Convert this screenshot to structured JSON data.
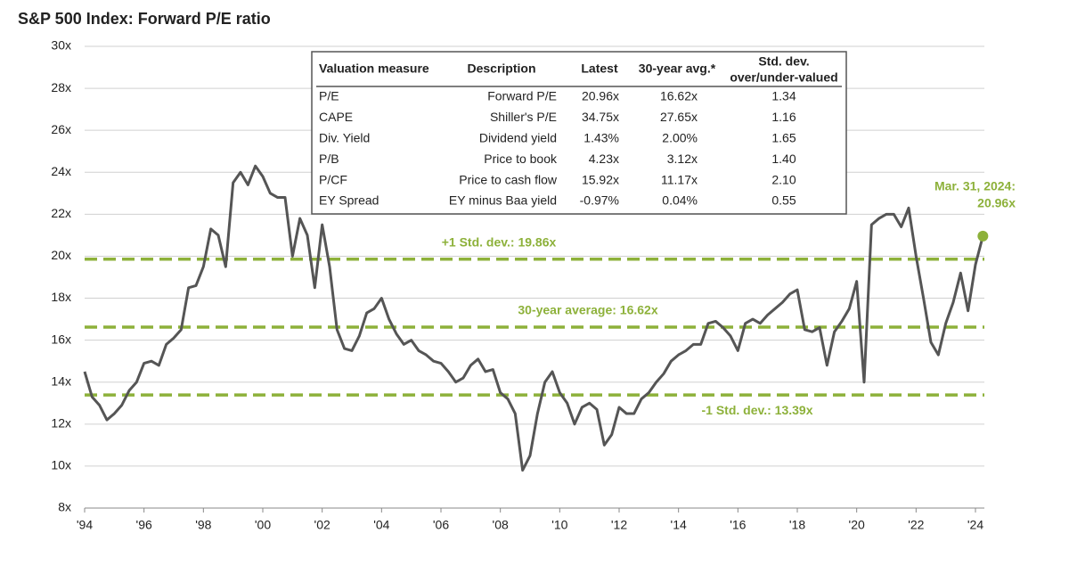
{
  "chart_data": {
    "type": "line",
    "title": "S&P 500 Index: Forward P/E ratio",
    "x": [
      1994.0,
      1994.25,
      1994.5,
      1994.75,
      1995.0,
      1995.25,
      1995.5,
      1995.75,
      1996.0,
      1996.25,
      1996.5,
      1996.75,
      1997.0,
      1997.25,
      1997.5,
      1997.75,
      1998.0,
      1998.25,
      1998.5,
      1998.75,
      1999.0,
      1999.25,
      1999.5,
      1999.75,
      2000.0,
      2000.25,
      2000.5,
      2000.75,
      2001.0,
      2001.25,
      2001.5,
      2001.75,
      2002.0,
      2002.25,
      2002.5,
      2002.75,
      2003.0,
      2003.25,
      2003.5,
      2003.75,
      2004.0,
      2004.25,
      2004.5,
      2004.75,
      2005.0,
      2005.25,
      2005.5,
      2005.75,
      2006.0,
      2006.25,
      2006.5,
      2006.75,
      2007.0,
      2007.25,
      2007.5,
      2007.75,
      2008.0,
      2008.25,
      2008.5,
      2008.75,
      2009.0,
      2009.25,
      2009.5,
      2009.75,
      2010.0,
      2010.25,
      2010.5,
      2010.75,
      2011.0,
      2011.25,
      2011.5,
      2011.75,
      2012.0,
      2012.25,
      2012.5,
      2012.75,
      2013.0,
      2013.25,
      2013.5,
      2013.75,
      2014.0,
      2014.25,
      2014.5,
      2014.75,
      2015.0,
      2015.25,
      2015.5,
      2015.75,
      2016.0,
      2016.25,
      2016.5,
      2016.75,
      2017.0,
      2017.25,
      2017.5,
      2017.75,
      2018.0,
      2018.25,
      2018.5,
      2018.75,
      2019.0,
      2019.25,
      2019.5,
      2019.75,
      2020.0,
      2020.25,
      2020.5,
      2020.75,
      2021.0,
      2021.25,
      2021.5,
      2021.75,
      2022.0,
      2022.25,
      2022.5,
      2022.75,
      2023.0,
      2023.25,
      2023.5,
      2023.75,
      2024.0,
      2024.25
    ],
    "series": [
      {
        "color": "#555555",
        "values": [
          14.5,
          13.3,
          12.9,
          12.2,
          12.5,
          12.9,
          13.6,
          14.0,
          14.9,
          15.0,
          14.8,
          15.8,
          16.1,
          16.5,
          18.5,
          18.6,
          19.5,
          21.3,
          21.0,
          19.5,
          23.5,
          24.0,
          23.4,
          24.3,
          23.8,
          23.0,
          22.8,
          22.8,
          20.0,
          21.8,
          21.0,
          18.5,
          21.5,
          19.5,
          16.5,
          15.6,
          15.5,
          16.2,
          17.3,
          17.5,
          18.0,
          17.0,
          16.3,
          15.8,
          16.0,
          15.5,
          15.3,
          15.0,
          14.9,
          14.5,
          14.0,
          14.2,
          14.8,
          15.1,
          14.5,
          14.6,
          13.5,
          13.2,
          12.5,
          9.8,
          10.5,
          12.5,
          14.0,
          14.5,
          13.5,
          13.0,
          12.0,
          12.8,
          13.0,
          12.7,
          11.0,
          11.5,
          12.8,
          12.5,
          12.5,
          13.2,
          13.5,
          14.0,
          14.4,
          15.0,
          15.3,
          15.5,
          15.8,
          15.8,
          16.8,
          16.9,
          16.6,
          16.2,
          15.5,
          16.8,
          17.0,
          16.8,
          17.2,
          17.5,
          17.8,
          18.2,
          18.4,
          16.5,
          16.4,
          16.6,
          14.8,
          16.4,
          16.9,
          17.5,
          18.8,
          14.0,
          21.5,
          21.8,
          22.0,
          22.0,
          21.4,
          22.3,
          20.0,
          18.0,
          15.9,
          15.3,
          16.8,
          17.8,
          19.2,
          17.4,
          19.6,
          20.96
        ]
      }
    ],
    "xlim": [
      1994,
      2024.3
    ],
    "xticks": [
      {
        "value": 1994,
        "label": "'94"
      },
      {
        "value": 1996,
        "label": "'96"
      },
      {
        "value": 1998,
        "label": "'98"
      },
      {
        "value": 2000,
        "label": "'00"
      },
      {
        "value": 2002,
        "label": "'02"
      },
      {
        "value": 2004,
        "label": "'04"
      },
      {
        "value": 2006,
        "label": "'06"
      },
      {
        "value": 2008,
        "label": "'08"
      },
      {
        "value": 2010,
        "label": "'10"
      },
      {
        "value": 2012,
        "label": "'12"
      },
      {
        "value": 2014,
        "label": "'14"
      },
      {
        "value": 2016,
        "label": "'16"
      },
      {
        "value": 2018,
        "label": "'18"
      },
      {
        "value": 2020,
        "label": "'20"
      },
      {
        "value": 2022,
        "label": "'22"
      },
      {
        "value": 2024,
        "label": "'24"
      }
    ],
    "ylim": [
      8,
      30
    ],
    "yticks": [
      {
        "value": 8,
        "label": "8x"
      },
      {
        "value": 10,
        "label": "10x"
      },
      {
        "value": 12,
        "label": "12x"
      },
      {
        "value": 14,
        "label": "14x"
      },
      {
        "value": 16,
        "label": "16x"
      },
      {
        "value": 18,
        "label": "18x"
      },
      {
        "value": 20,
        "label": "20x"
      },
      {
        "value": 22,
        "label": "22x"
      },
      {
        "value": 24,
        "label": "24x"
      },
      {
        "value": 26,
        "label": "26x"
      },
      {
        "value": 28,
        "label": "28x"
      },
      {
        "value": 30,
        "label": "30x"
      }
    ],
    "grid": true,
    "reference_color": "#8db13a",
    "reference_lines": [
      {
        "label": "+1 Std. dev.: 19.86x",
        "value": 19.86
      },
      {
        "label": "30-year average: 16.62x",
        "value": 16.62
      },
      {
        "label": "-1 Std. dev.: 13.39x",
        "value": 13.39
      }
    ],
    "annotation": [
      "Mar. 31, 2024:",
      "20.96x"
    ],
    "table": {
      "columns": [
        [
          "Valuation measure"
        ],
        [
          "Description"
        ],
        [
          "Latest"
        ],
        [
          "30-year avg.*"
        ],
        [
          "Std. dev.",
          "over/under-valued"
        ]
      ],
      "rows": [
        [
          "P/E",
          "Forward P/E",
          "20.96x",
          "16.62x",
          "1.34"
        ],
        [
          "CAPE",
          "Shiller's P/E",
          "34.75x",
          "27.65x",
          "1.16"
        ],
        [
          "Div. Yield",
          "Dividend yield",
          "1.43%",
          "2.00%",
          "1.65"
        ],
        [
          "P/B",
          "Price to book",
          "4.23x",
          "3.12x",
          "1.40"
        ],
        [
          "P/CF",
          "Price to cash flow",
          "15.92x",
          "11.17x",
          "2.10"
        ],
        [
          "EY Spread",
          "EY minus Baa yield",
          "-0.97%",
          "0.04%",
          "0.55"
        ]
      ]
    }
  }
}
